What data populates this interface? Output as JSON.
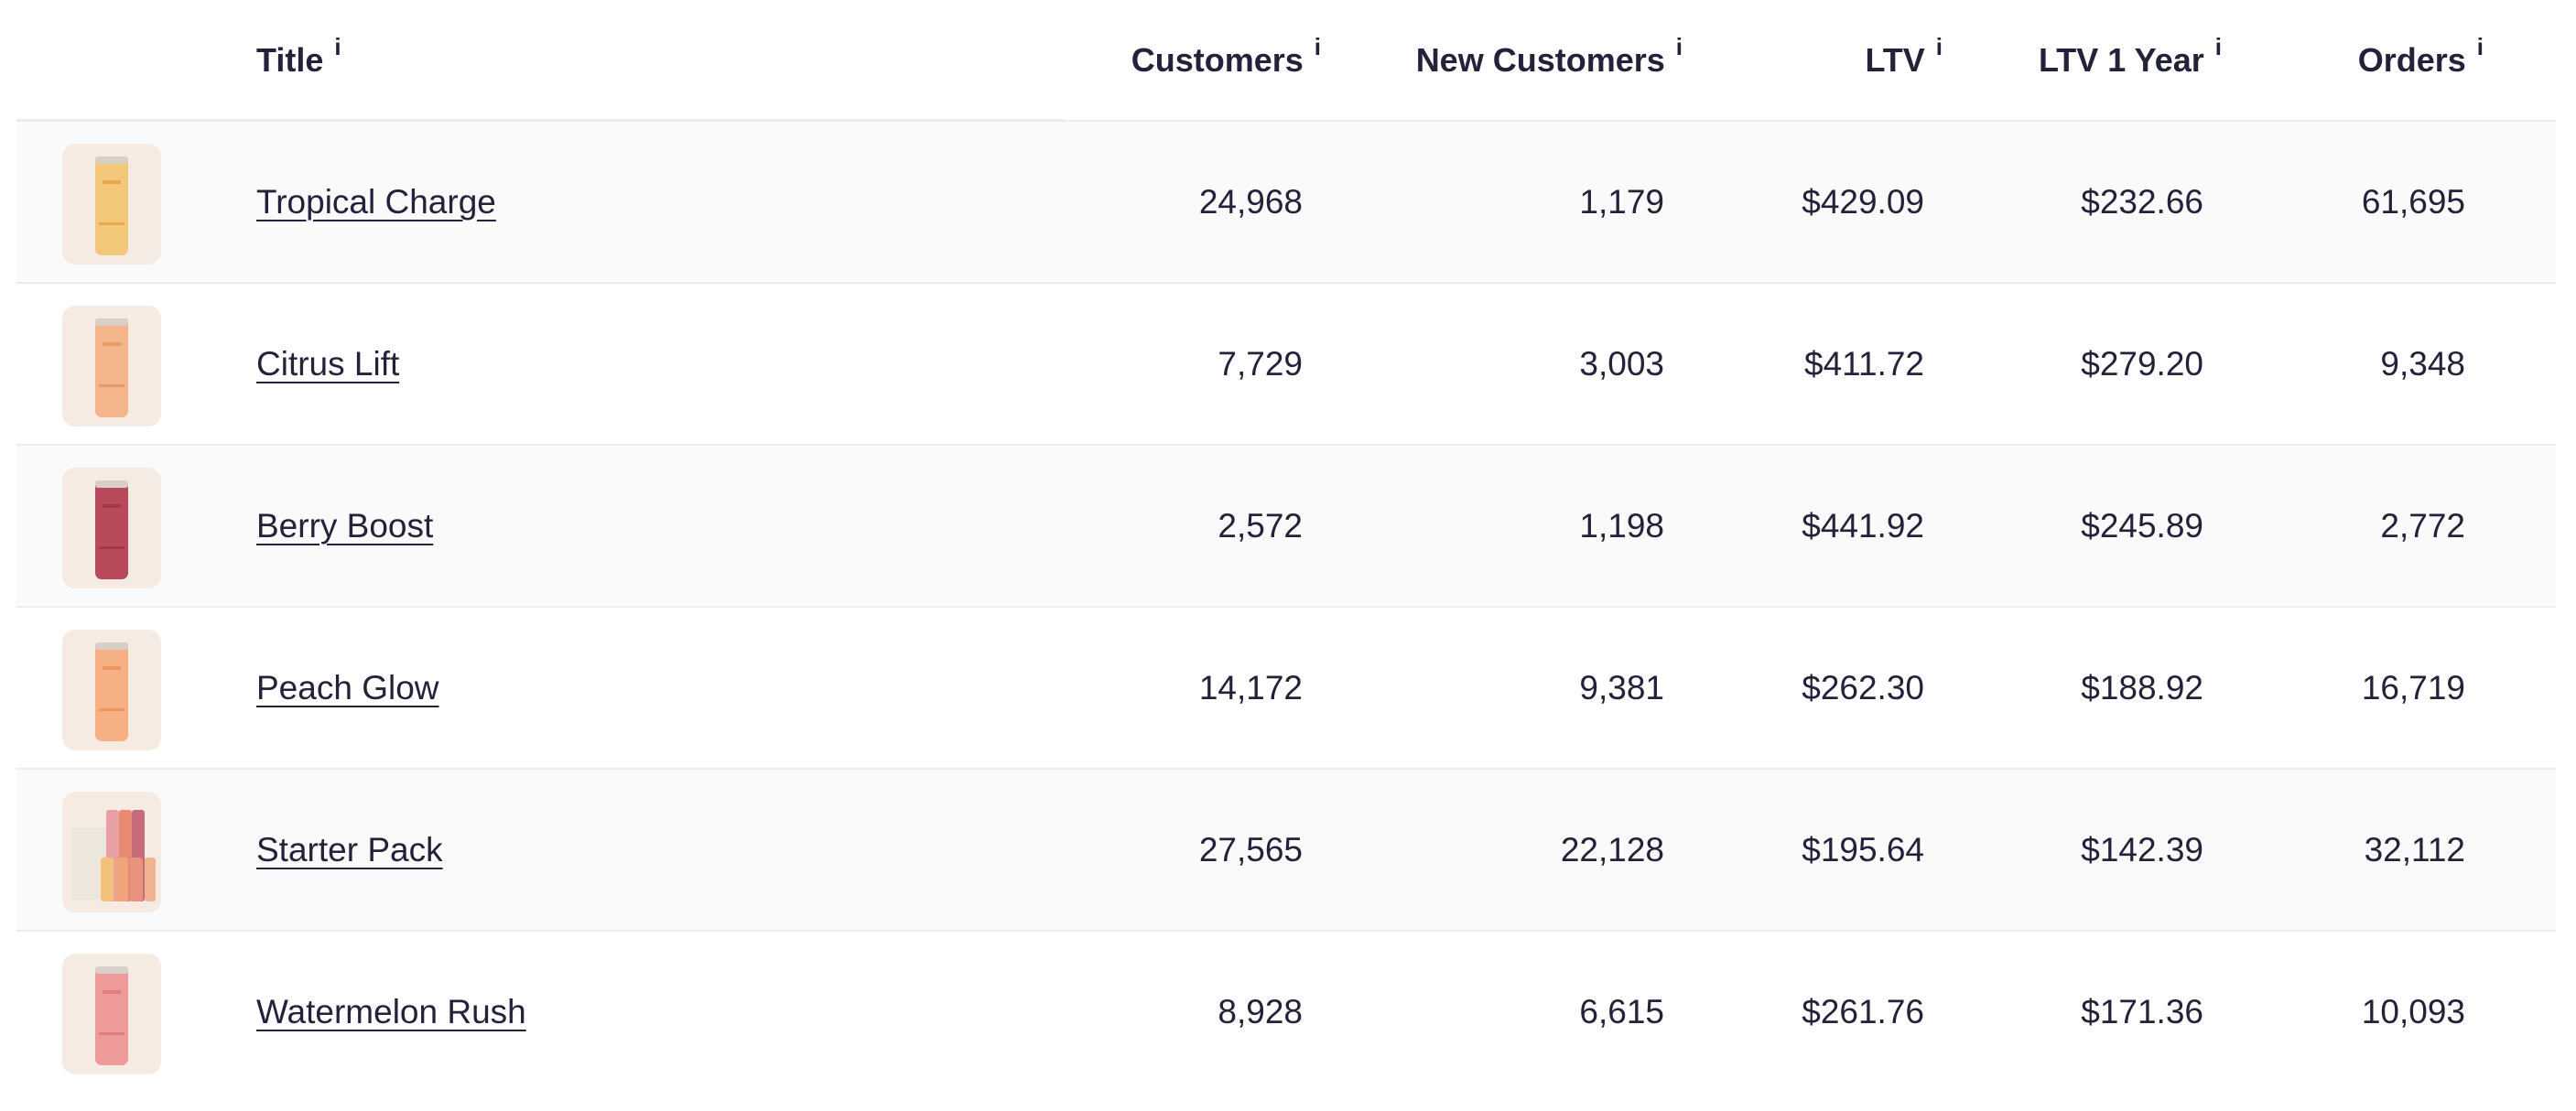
{
  "header": {
    "columns": [
      "Title",
      "Customers",
      "New Customers",
      "LTV",
      "LTV 1 Year",
      "Orders"
    ],
    "info_icon": "i"
  },
  "table": {
    "rows": [
      [
        "Tropical Charge",
        "24,968",
        "1,179",
        "$429.09",
        "$232.66",
        "61,695"
      ],
      [
        "Citrus Lift",
        "7,729",
        "3,003",
        "$411.72",
        "$279.20",
        "9,348"
      ],
      [
        "Berry Boost",
        "2,572",
        "1,198",
        "$441.92",
        "$245.89",
        "2,772"
      ],
      [
        "Peach Glow",
        "14,172",
        "9,381",
        "$262.30",
        "$188.92",
        "16,719"
      ],
      [
        "Starter Pack",
        "27,565",
        "22,128",
        "$195.64",
        "$142.39",
        "32,112"
      ],
      [
        "Watermelon Rush",
        "8,928",
        "6,615",
        "$261.76",
        "$171.36",
        "10,093"
      ]
    ]
  }
}
